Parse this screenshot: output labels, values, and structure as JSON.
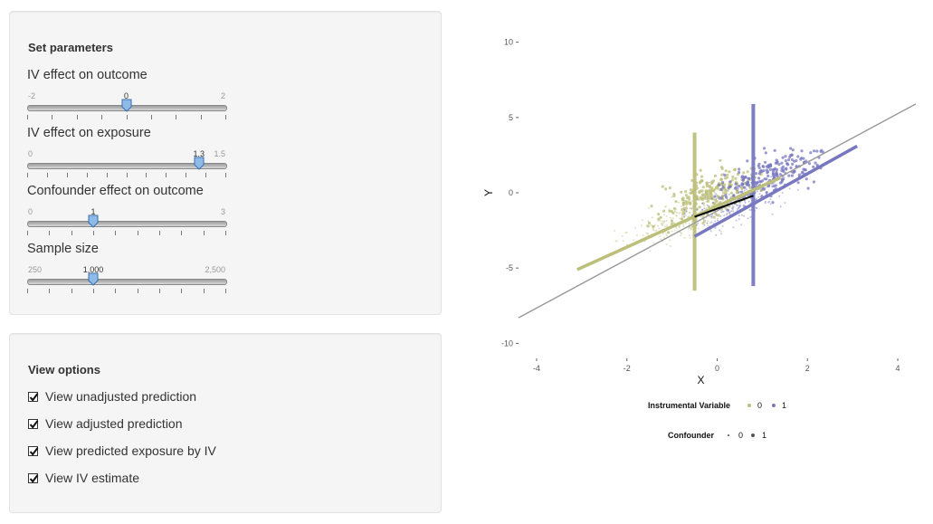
{
  "params": {
    "title": "Set parameters",
    "sliders": [
      {
        "label": "IV effect on outcome",
        "min_label": "-2",
        "max_label": "2",
        "value_label": "0",
        "min": -2,
        "max": 2,
        "value": 0,
        "ticks": 9
      },
      {
        "label": "IV effect on exposure",
        "min_label": "0",
        "max_label": "1.5",
        "value_label": "1.3",
        "min": 0,
        "max": 1.5,
        "value": 1.3,
        "ticks": 11
      },
      {
        "label": "Confounder effect on outcome",
        "min_label": "0",
        "max_label": "3",
        "value_label": "1",
        "min": 0,
        "max": 3,
        "value": 1,
        "ticks": 10
      },
      {
        "label": "Sample size",
        "min_label": "250",
        "max_label": "2,500",
        "value_label": "1,000",
        "min": 250,
        "max": 2500,
        "value": 1000,
        "ticks": 10
      }
    ]
  },
  "view": {
    "title": "View options",
    "options": [
      {
        "label": "View unadjusted prediction",
        "checked": true
      },
      {
        "label": "View adjusted prediction",
        "checked": true
      },
      {
        "label": "View predicted exposure by IV",
        "checked": true
      },
      {
        "label": "View IV estimate",
        "checked": true
      }
    ]
  },
  "chart_data": {
    "type": "scatter",
    "xlabel": "X",
    "ylabel": "Y",
    "xlim": [
      -4.4,
      4.4
    ],
    "ylim": [
      -11,
      11
    ],
    "xticks": [
      -4,
      -2,
      0,
      2,
      4
    ],
    "yticks": [
      -10,
      -5,
      0,
      5,
      10
    ],
    "grid": false,
    "colors": {
      "iv0": "#bcbf7a",
      "iv1": "#7878c0",
      "fit_line": "#999999",
      "iv_estimate": "#000000"
    },
    "series": [
      {
        "name": "0",
        "group": "Instrumental Variable",
        "x_center": -0.5,
        "x_spread": 1.0,
        "y_slope": 1.0,
        "y_spread": 1.4
      },
      {
        "name": "1",
        "group": "Instrumental Variable",
        "x_center": 0.8,
        "x_spread": 1.0,
        "y_slope": 1.0,
        "y_spread": 1.4
      }
    ],
    "lines": [
      {
        "kind": "unadjusted",
        "x": [
          -4.4,
          4.4
        ],
        "y": [
          -8.3,
          5.9
        ]
      },
      {
        "kind": "adjusted_iv0",
        "x": [
          -3.1,
          1.4
        ],
        "y": [
          -5.1,
          1.0
        ]
      },
      {
        "kind": "adjusted_iv1",
        "x": [
          -0.5,
          3.1
        ],
        "y": [
          -2.9,
          3.1
        ]
      },
      {
        "kind": "iv_estimate",
        "x": [
          -0.5,
          0.8
        ],
        "y": [
          -1.6,
          -0.2
        ]
      }
    ],
    "exposure_bands": [
      {
        "iv": "0",
        "x": -0.5,
        "y": [
          -6.5,
          4.0
        ]
      },
      {
        "iv": "1",
        "x": 0.8,
        "y": [
          -6.2,
          5.9
        ]
      }
    ],
    "legends": [
      {
        "title": "Instrumental Variable",
        "entries": [
          "0",
          "1"
        ]
      },
      {
        "title": "Confounder",
        "entries": [
          "0",
          "1"
        ]
      }
    ]
  }
}
